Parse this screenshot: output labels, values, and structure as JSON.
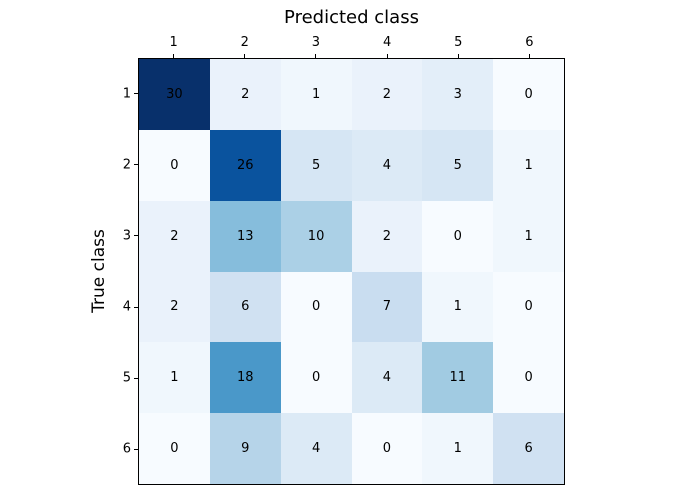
{
  "figure": {
    "background": "#ffffff",
    "axis_color": "#000000",
    "text_color": "#000000"
  },
  "chart_data": {
    "type": "heatmap",
    "title": "Predicted class",
    "ylabel": "True class",
    "xlabel": "",
    "x_tick_labels": [
      "1",
      "2",
      "3",
      "4",
      "5",
      "6"
    ],
    "y_tick_labels": [
      "1",
      "2",
      "3",
      "4",
      "5",
      "6"
    ],
    "matrix": [
      [
        30,
        2,
        1,
        2,
        3,
        0
      ],
      [
        0,
        26,
        5,
        4,
        5,
        1
      ],
      [
        2,
        13,
        10,
        2,
        0,
        1
      ],
      [
        2,
        6,
        0,
        7,
        1,
        0
      ],
      [
        1,
        18,
        0,
        4,
        11,
        0
      ],
      [
        0,
        9,
        4,
        0,
        1,
        6
      ]
    ],
    "vmin": 0,
    "vmax": 30,
    "cell_text_color": "#000000",
    "grid": false,
    "legend": "none",
    "colormap": {
      "name": "Blues",
      "stops": [
        {
          "t": 0.0,
          "rgb": [
            247,
            251,
            255
          ]
        },
        {
          "t": 0.125,
          "rgb": [
            222,
            235,
            247
          ]
        },
        {
          "t": 0.25,
          "rgb": [
            198,
            219,
            239
          ]
        },
        {
          "t": 0.375,
          "rgb": [
            158,
            202,
            225
          ]
        },
        {
          "t": 0.5,
          "rgb": [
            107,
            174,
            214
          ]
        },
        {
          "t": 0.625,
          "rgb": [
            66,
            146,
            198
          ]
        },
        {
          "t": 0.75,
          "rgb": [
            33,
            113,
            181
          ]
        },
        {
          "t": 0.875,
          "rgb": [
            8,
            81,
            156
          ]
        },
        {
          "t": 1.0,
          "rgb": [
            8,
            48,
            107
          ]
        }
      ]
    }
  }
}
